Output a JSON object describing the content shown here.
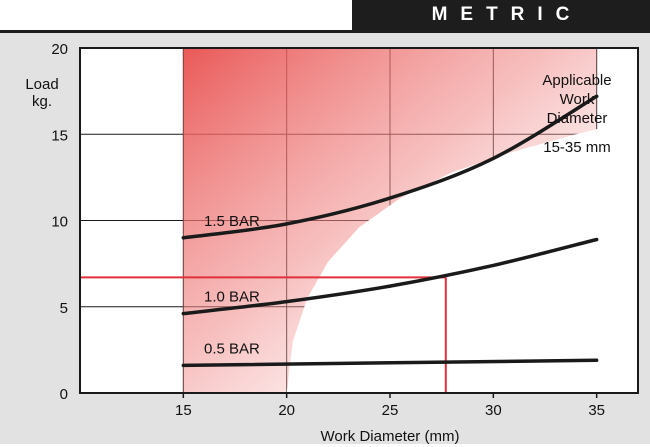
{
  "header": {
    "title": "METRIC"
  },
  "chart_data": {
    "type": "line",
    "title": "",
    "xlabel": "Work Diameter (mm)",
    "ylabel": "Load\nkg.",
    "xlim": [
      10,
      37
    ],
    "ylim": [
      0,
      20
    ],
    "x_ticks": [
      "15",
      "20",
      "25",
      "30",
      "35"
    ],
    "y_ticks": [
      "0",
      "5",
      "10",
      "15",
      "20"
    ],
    "grid": true,
    "series": [
      {
        "name": "1.5 BAR",
        "x": [
          15,
          20,
          25,
          30,
          35
        ],
        "y": [
          9.0,
          9.8,
          11.3,
          13.6,
          17.2
        ]
      },
      {
        "name": "1.0 BAR",
        "x": [
          15,
          20,
          25,
          30,
          35
        ],
        "y": [
          4.6,
          5.3,
          6.2,
          7.4,
          8.9
        ]
      },
      {
        "name": "0.5 BAR",
        "x": [
          15,
          35
        ],
        "y": [
          1.6,
          1.9
        ]
      }
    ],
    "example_reading": {
      "x": 27.7,
      "y": 6.7
    },
    "shaded_range": [
      15,
      35
    ],
    "annotation": {
      "lines": [
        "Applicable",
        "Work",
        "Diameter"
      ],
      "range": "15-35 mm"
    },
    "colors": {
      "shade": "#e8504f",
      "reference_line": "#e0303a",
      "curve": "#1a1a1a",
      "frame": "#1a1a1a"
    }
  }
}
